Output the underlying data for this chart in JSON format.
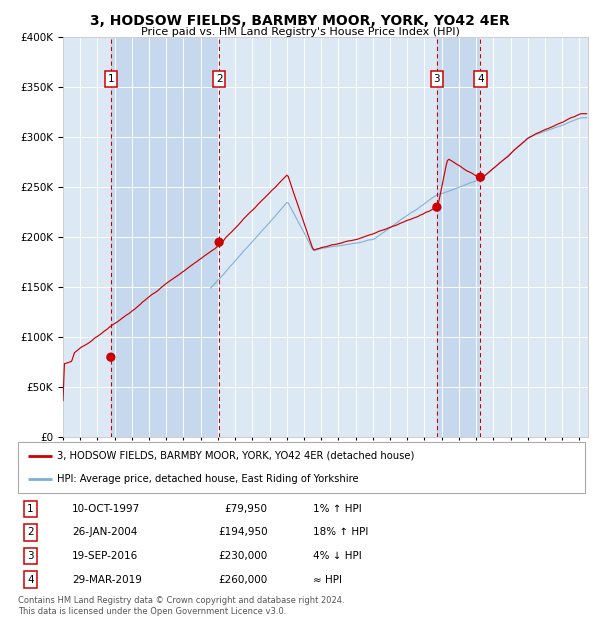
{
  "title": "3, HODSOW FIELDS, BARMBY MOOR, YORK, YO42 4ER",
  "subtitle": "Price paid vs. HM Land Registry's House Price Index (HPI)",
  "legend_line1": "3, HODSOW FIELDS, BARMBY MOOR, YORK, YO42 4ER (detached house)",
  "legend_line2": "HPI: Average price, detached house, East Riding of Yorkshire",
  "transactions": [
    {
      "num": 1,
      "date": "10-OCT-1997",
      "price": 79950,
      "rel": "1% ↑ HPI",
      "x_year": 1997.78
    },
    {
      "num": 2,
      "date": "26-JAN-2004",
      "price": 194950,
      "rel": "18% ↑ HPI",
      "x_year": 2004.07
    },
    {
      "num": 3,
      "date": "19-SEP-2016",
      "price": 230000,
      "rel": "4% ↓ HPI",
      "x_year": 2016.72
    },
    {
      "num": 4,
      "date": "29-MAR-2019",
      "price": 260000,
      "rel": "≈ HPI",
      "x_year": 2019.25
    }
  ],
  "background_color": "#ffffff",
  "plot_background": "#dce9f5",
  "grid_color": "#ffffff",
  "red_line_color": "#cc0000",
  "blue_line_color": "#7bafd4",
  "marker_color": "#cc0000",
  "dashed_line_color": "#cc0000",
  "shade_light": "#dce9f5",
  "shade_dark": "#c5d8ee",
  "ylim": [
    0,
    400000
  ],
  "xlim_start": 1995.0,
  "xlim_end": 2025.5,
  "footer": "Contains HM Land Registry data © Crown copyright and database right 2024.\nThis data is licensed under the Open Government Licence v3.0."
}
